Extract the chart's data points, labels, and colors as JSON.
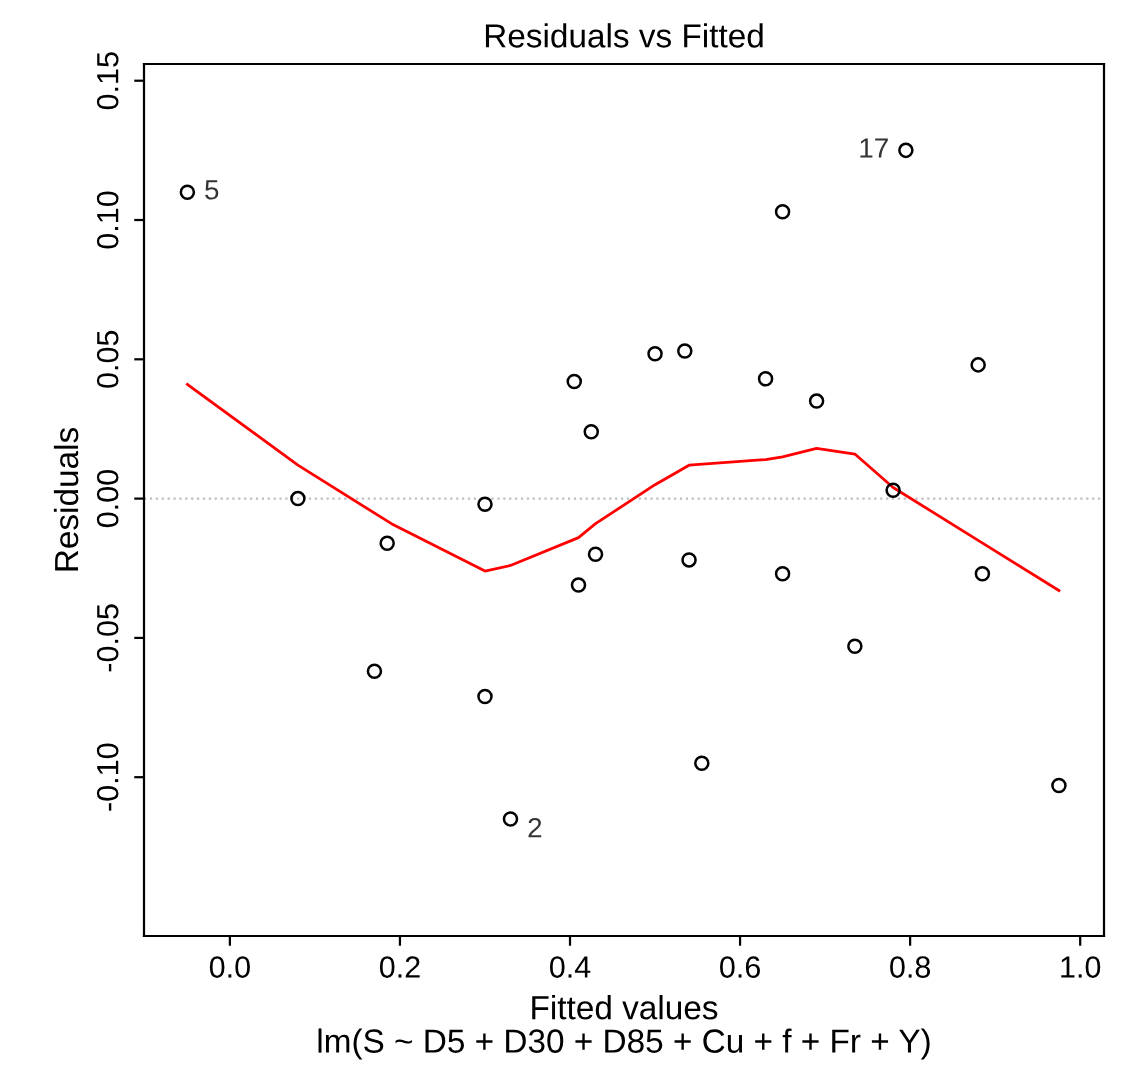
{
  "chart_data": {
    "type": "scatter",
    "title": "Residuals vs Fitted",
    "subtitle": "lm(S ~ D5 + D30 + D85 + Cu + f + Fr + Y)",
    "xlabel": "Fitted values",
    "ylabel": "Residuals",
    "xlim": [
      -0.101,
      1.028
    ],
    "ylim": [
      -0.157,
      0.156
    ],
    "xticks": [
      {
        "value": 0,
        "label": "0.0"
      },
      0.2,
      0.4,
      0.6,
      0.8,
      {
        "value": 1,
        "label": "1.0"
      }
    ],
    "yticks": [
      {
        "value": -0.1,
        "label": "-0.10"
      },
      {
        "value": -0.05,
        "label": "-0.05"
      },
      {
        "value": 0,
        "label": "0.00"
      },
      0.05,
      {
        "value": 0.1,
        "label": "0.10"
      },
      0.15
    ],
    "grid": false,
    "series": [
      {
        "marker": "circle",
        "color": "#000000",
        "x": [
          -0.05,
          0.08,
          0.185,
          0.17,
          0.3,
          0.3,
          0.33,
          0.405,
          0.41,
          0.425,
          0.43,
          0.5,
          0.535,
          0.54,
          0.555,
          0.63,
          0.65,
          0.65,
          0.69,
          0.735,
          0.78,
          0.795,
          0.88,
          0.885,
          0.975
        ],
        "values": [
          0.11,
          0.0,
          -0.016,
          -0.062,
          -0.002,
          -0.071,
          -0.115,
          0.042,
          -0.031,
          0.024,
          -0.02,
          0.052,
          0.053,
          -0.022,
          -0.095,
          0.043,
          0.103,
          -0.027,
          0.035,
          -0.053,
          0.003,
          0.125,
          0.048,
          -0.027,
          -0.103
        ]
      },
      {
        "type": "line",
        "marker": "none",
        "color": "#ff0000",
        "x": [
          -0.05,
          0.08,
          0.19,
          0.3,
          0.33,
          0.41,
          0.43,
          0.5,
          0.54,
          0.63,
          0.65,
          0.69,
          0.735,
          0.78,
          0.88,
          0.975
        ],
        "values": [
          0.041,
          0.012,
          -0.009,
          -0.026,
          -0.024,
          -0.014,
          -0.009,
          0.005,
          0.012,
          0.014,
          0.015,
          0.018,
          0.016,
          0.004,
          -0.015,
          -0.033
        ]
      }
    ],
    "ref_lines": [
      {
        "axis": "y",
        "value": 0,
        "color": "#bebebe",
        "line_style": "dotted"
      }
    ],
    "annotations": [
      {
        "text": "5",
        "x": -0.05,
        "y": 0.11
      },
      {
        "text": "2",
        "x": 0.33,
        "y": -0.115
      },
      {
        "text": "17",
        "x": 0.795,
        "y": 0.125
      }
    ]
  }
}
